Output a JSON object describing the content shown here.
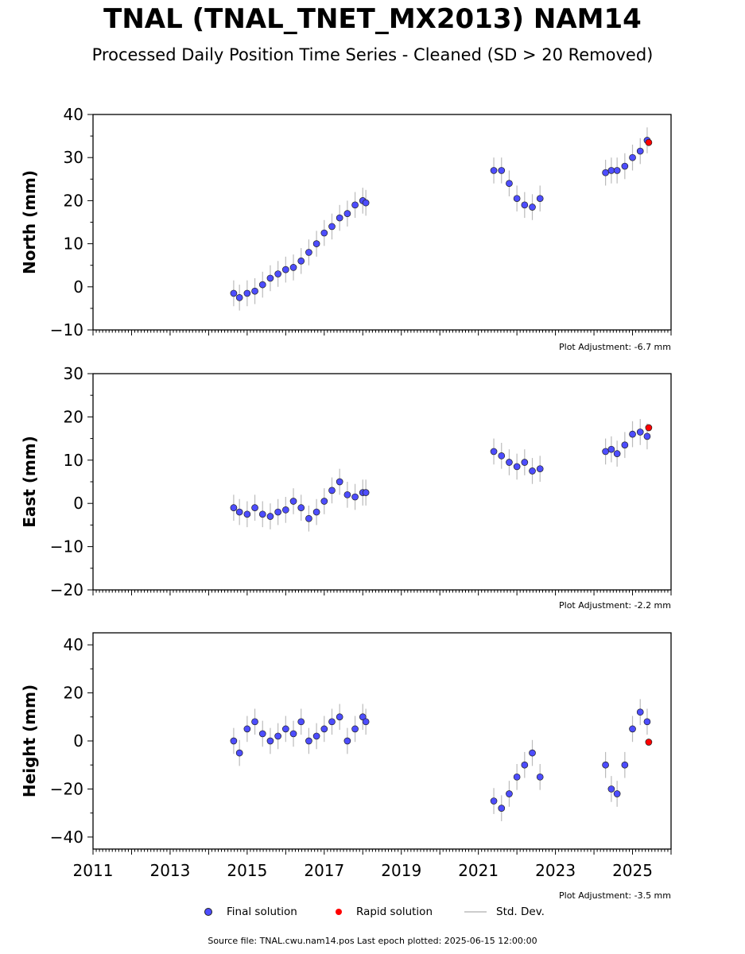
{
  "title": "TNAL (TNAL_TNET_MX2013) NAM14",
  "subtitle": "Processed Daily Position Time Series - Cleaned (SD > 20 Removed)",
  "legend": {
    "final": "Final solution",
    "rapid": "Rapid solution",
    "std": "Std. Dev."
  },
  "footer": "Source file: TNAL.cwu.nam14.pos  Last epoch plotted: 2025-06-15 12:00:00",
  "colors": {
    "final": "#4d4dff",
    "rapid": "#ff0000",
    "std": "#bbbbbb"
  },
  "chart_data": [
    {
      "type": "scatter",
      "ylabel": "North (mm)",
      "ylim": [
        -10,
        40
      ],
      "yticks": [
        -10,
        0,
        10,
        20,
        30,
        40
      ],
      "xlim": [
        2011,
        2026
      ],
      "adjustment": "Plot Adjustment: -6.7 mm",
      "series": [
        {
          "name": "Final solution",
          "x": [
            2014.65,
            2014.8,
            2015.0,
            2015.2,
            2015.4,
            2015.6,
            2015.8,
            2016.0,
            2016.2,
            2016.4,
            2016.6,
            2016.8,
            2017.0,
            2017.2,
            2017.4,
            2017.6,
            2017.8,
            2018.0,
            2018.08,
            2021.4,
            2021.6,
            2021.8,
            2022.0,
            2022.2,
            2022.4,
            2022.6,
            2024.3,
            2024.45,
            2024.6,
            2024.8,
            2025.0,
            2025.2,
            2025.38
          ],
          "y": [
            -1.5,
            -2.5,
            -1.5,
            -1.0,
            0.5,
            2.0,
            3.0,
            4.0,
            4.5,
            6.0,
            8.0,
            10.0,
            12.5,
            14.0,
            16.0,
            17.0,
            19.0,
            20.0,
            19.5,
            27.0,
            27.0,
            24.0,
            20.5,
            19.0,
            18.5,
            20.5,
            26.5,
            27.0,
            27.0,
            28.0,
            30.0,
            31.5,
            34.0
          ]
        },
        {
          "name": "Rapid solution",
          "x": [
            2025.42
          ],
          "y": [
            33.5
          ]
        }
      ]
    },
    {
      "type": "scatter",
      "ylabel": "East (mm)",
      "ylim": [
        -20,
        30
      ],
      "yticks": [
        -20,
        -10,
        0,
        10,
        20,
        30
      ],
      "xlim": [
        2011,
        2026
      ],
      "adjustment": "Plot Adjustment: -2.2 mm",
      "series": [
        {
          "name": "Final solution",
          "x": [
            2014.65,
            2014.8,
            2015.0,
            2015.2,
            2015.4,
            2015.6,
            2015.8,
            2016.0,
            2016.2,
            2016.4,
            2016.6,
            2016.8,
            2017.0,
            2017.2,
            2017.4,
            2017.6,
            2017.8,
            2018.0,
            2018.08,
            2021.4,
            2021.6,
            2021.8,
            2022.0,
            2022.2,
            2022.4,
            2022.6,
            2024.3,
            2024.45,
            2024.6,
            2024.8,
            2025.0,
            2025.2,
            2025.38
          ],
          "y": [
            -1.0,
            -2.0,
            -2.5,
            -1.0,
            -2.5,
            -3.0,
            -2.0,
            -1.5,
            0.5,
            -1.0,
            -3.5,
            -2.0,
            0.5,
            3.0,
            5.0,
            2.0,
            1.5,
            2.5,
            2.5,
            12.0,
            11.0,
            9.5,
            8.5,
            9.5,
            7.5,
            8.0,
            12.0,
            12.5,
            11.5,
            13.5,
            16.0,
            16.5,
            15.5
          ]
        },
        {
          "name": "Rapid solution",
          "x": [
            2025.42
          ],
          "y": [
            17.5
          ]
        }
      ]
    },
    {
      "type": "scatter",
      "ylabel": "Height (mm)",
      "ylim": [
        -45,
        45
      ],
      "yticks": [
        -40,
        -20,
        0,
        20,
        40
      ],
      "xlim": [
        2011,
        2026
      ],
      "xticks": [
        2011,
        2013,
        2015,
        2017,
        2019,
        2021,
        2023,
        2025
      ],
      "adjustment": "Plot Adjustment: -3.5 mm",
      "series": [
        {
          "name": "Final solution",
          "x": [
            2014.65,
            2014.8,
            2015.0,
            2015.2,
            2015.4,
            2015.6,
            2015.8,
            2016.0,
            2016.2,
            2016.4,
            2016.6,
            2016.8,
            2017.0,
            2017.2,
            2017.4,
            2017.6,
            2017.8,
            2018.0,
            2018.08,
            2021.4,
            2021.6,
            2021.8,
            2022.0,
            2022.2,
            2022.4,
            2022.6,
            2024.3,
            2024.45,
            2024.6,
            2024.8,
            2025.0,
            2025.2,
            2025.38
          ],
          "y": [
            0,
            -5,
            5,
            8,
            3,
            0,
            2,
            5,
            3,
            8,
            0,
            2,
            5,
            8,
            10,
            0,
            5,
            10,
            8,
            -25,
            -28,
            -22,
            -15,
            -10,
            -5,
            -15,
            -10,
            -20,
            -22,
            -10,
            5,
            12,
            8
          ]
        },
        {
          "name": "Rapid solution",
          "x": [
            2025.42
          ],
          "y": [
            -0.5
          ]
        }
      ]
    }
  ]
}
